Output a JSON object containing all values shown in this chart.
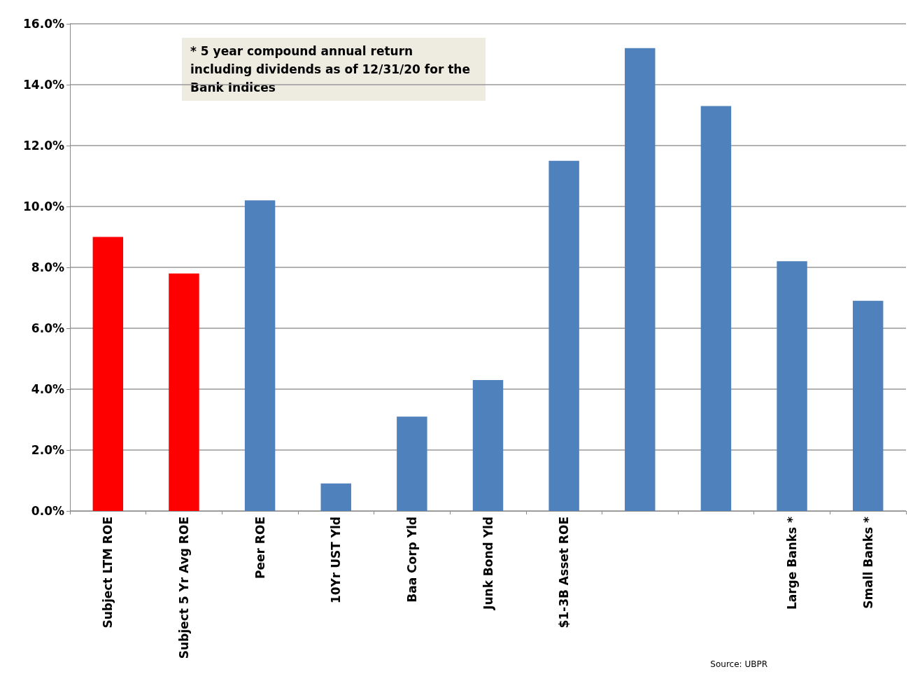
{
  "chart_data": {
    "type": "bar",
    "categories": [
      "Subject LTM ROE",
      "Subject 5 Yr Avg ROE",
      "Peer ROE",
      "10Yr UST Yld",
      "Baa Corp Yld",
      "Junk Bond Yld",
      "$1-3B Asset ROE",
      null,
      null,
      "Large Banks *",
      "Small Banks *"
    ],
    "values": [
      9.0,
      7.8,
      10.2,
      0.9,
      3.1,
      4.3,
      11.5,
      15.2,
      13.3,
      8.2,
      6.9
    ],
    "colors": [
      "#ff0000",
      "#ff0000",
      "#4f81bd",
      "#4f81bd",
      "#4f81bd",
      "#4f81bd",
      "#4f81bd",
      "#4f81bd",
      "#4f81bd",
      "#4f81bd",
      "#4f81bd"
    ],
    "ylim": [
      0,
      16
    ],
    "yticks": [
      {
        "value": 0,
        "label": "0.0%"
      },
      {
        "value": 2,
        "label": "2.0%"
      },
      {
        "value": 4,
        "label": "4.0%"
      },
      {
        "value": 6,
        "label": "6.0%"
      },
      {
        "value": 8,
        "label": "8.0%"
      },
      {
        "value": 10,
        "label": "10.0%"
      },
      {
        "value": 12,
        "label": "12.0%"
      },
      {
        "value": 14,
        "label": "14.0%"
      },
      {
        "value": 16,
        "label": "16.0%"
      }
    ],
    "grid": "y",
    "annotations": [
      "* 5 year compound annual return including dividends as of 12/31/20 for the Bank Indices",
      "Source: UBPR"
    ]
  }
}
